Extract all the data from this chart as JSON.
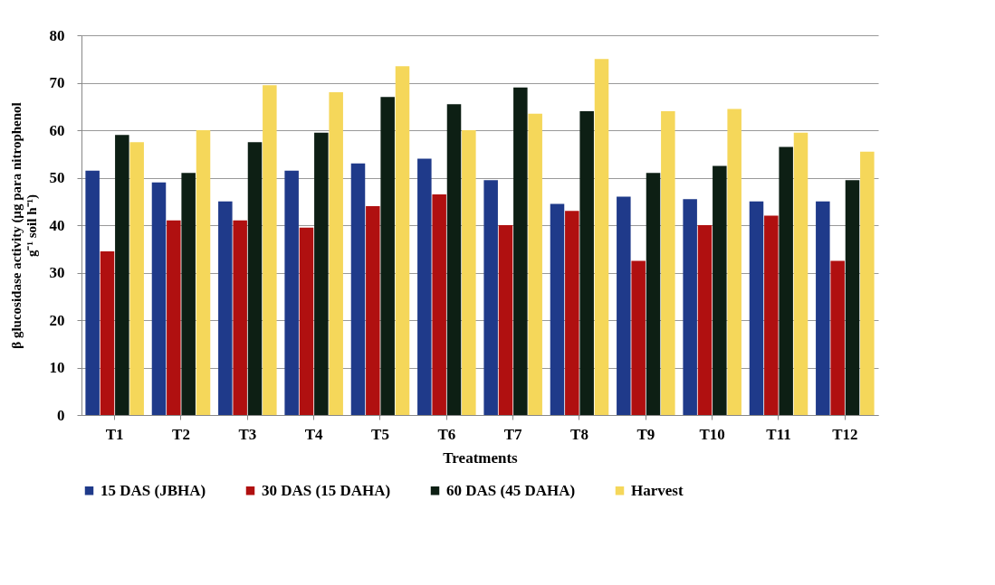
{
  "chart_data": {
    "type": "bar",
    "xlabel": "Treatments",
    "ylabel": "β glucosidase activity (µg para nitrophenol g⁻¹ soil h⁻¹)",
    "categories": [
      "T1",
      "T2",
      "T3",
      "T4",
      "T5",
      "T6",
      "T7",
      "T8",
      "T9",
      "T10",
      "T11",
      "T12"
    ],
    "series": [
      {
        "name": "15 DAS (JBHA)",
        "color": "#1f3a8a",
        "values": [
          51.5,
          49,
          45,
          51.5,
          53,
          54,
          49.5,
          44.5,
          46,
          45.5,
          45,
          45
        ]
      },
      {
        "name": "30 DAS (15 DAHA)",
        "color": "#b01010",
        "values": [
          34.5,
          41,
          41,
          39.5,
          44,
          46.5,
          40,
          43,
          32.5,
          40,
          42,
          32.5
        ]
      },
      {
        "name": "60 DAS (45 DAHA)",
        "color": "#0d1f14",
        "values": [
          59,
          51,
          57.5,
          59.5,
          67,
          65.5,
          69,
          64,
          51,
          52.5,
          56.5,
          49.5
        ]
      },
      {
        "name": "Harvest",
        "color": "#f5d75a",
        "values": [
          57.5,
          60,
          69.5,
          68,
          73.5,
          60,
          63.5,
          75,
          64,
          64.5,
          59.5,
          55.5
        ]
      }
    ],
    "ylim": [
      0,
      80
    ],
    "yticks": [
      0,
      10,
      20,
      30,
      40,
      50,
      60,
      70,
      80
    ],
    "grid": "y",
    "legend": "bottom"
  }
}
